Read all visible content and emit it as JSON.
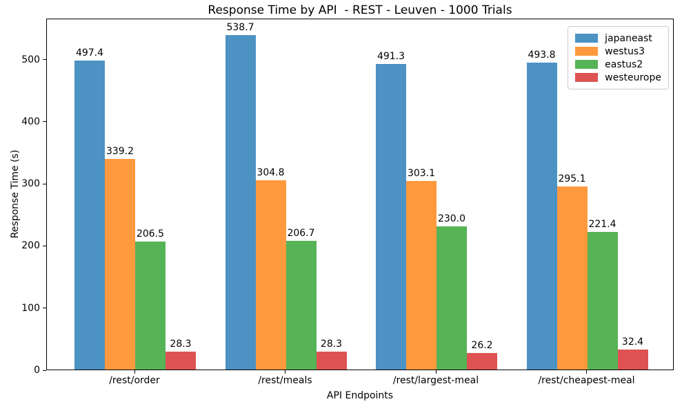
{
  "chart_data": {
    "type": "bar",
    "title": "Response Time by API  - REST - Leuven - 1000 Trials",
    "xlabel": "API Endpoints",
    "ylabel": "Response Time (s)",
    "categories": [
      "/rest/order",
      "/rest/meals",
      "/rest/largest-meal",
      "/rest/cheapest-meal"
    ],
    "series": [
      {
        "name": "japaneast",
        "color": "#4C92C3",
        "values": [
          497.4,
          538.7,
          491.3,
          493.8
        ]
      },
      {
        "name": "westus3",
        "color": "#FF993E",
        "values": [
          339.2,
          304.8,
          303.1,
          295.1
        ]
      },
      {
        "name": "eastus2",
        "color": "#56B356",
        "values": [
          206.5,
          206.7,
          230.0,
          221.4
        ]
      },
      {
        "name": "westeurope",
        "color": "#DE5253",
        "values": [
          28.3,
          28.3,
          26.2,
          32.4
        ]
      }
    ],
    "bar_value_labels": [
      [
        "497.4",
        "538.7",
        "491.3",
        "493.8"
      ],
      [
        "339.2",
        "304.8",
        "303.1",
        "295.1"
      ],
      [
        "206.5",
        "206.7",
        "230.0",
        "221.4"
      ],
      [
        "28.3",
        "28.3",
        "26.2",
        "32.4"
      ]
    ],
    "ylim": [
      0,
      566
    ],
    "yticks": [
      0,
      100,
      200,
      300,
      400,
      500
    ],
    "grid": false,
    "legend_position": "upper right",
    "spine_color": "#000000",
    "background_color": "#ffffff"
  }
}
